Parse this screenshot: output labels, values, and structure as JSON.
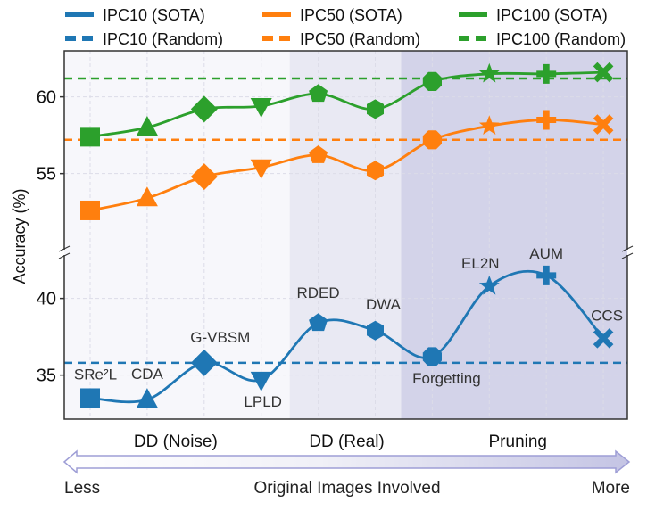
{
  "chart_data": {
    "type": "line",
    "ylabel": "Accuracy (%)",
    "categories": [
      "SRe²L",
      "CDA",
      "G-VBSM",
      "LPLD",
      "RDED",
      "DWA",
      "Forgetting",
      "EL2N",
      "AUM",
      "CCS"
    ],
    "markers": [
      "square",
      "triangle-up",
      "diamond",
      "triangle-down",
      "pentagon",
      "hexagon",
      "octagon",
      "star",
      "plus",
      "x"
    ],
    "groups": [
      {
        "label": "DD (Noise)",
        "from": 0,
        "to": 3,
        "color": "#f7f7fb"
      },
      {
        "label": "DD (Real)",
        "from": 4,
        "to": 5,
        "color": "#e9e9f3"
      },
      {
        "label": "Pruning",
        "from": 6,
        "to": 9,
        "color": "#d3d3e9"
      }
    ],
    "broken_y_axis": true,
    "ylim_upper": [
      50,
      63
    ],
    "ylim_lower": [
      32,
      43
    ],
    "yticks_upper": [
      55,
      60
    ],
    "yticks_lower": [
      35,
      40
    ],
    "grid": true,
    "legend_position": "top",
    "series": [
      {
        "name": "IPC10 (SOTA)",
        "color": "#1f77b4",
        "style": "solid",
        "values": [
          33.5,
          33.4,
          35.8,
          34.7,
          38.4,
          37.9,
          36.2,
          40.8,
          41.5,
          37.4
        ]
      },
      {
        "name": "IPC50 (SOTA)",
        "color": "#ff7f0e",
        "style": "solid",
        "values": [
          52.6,
          53.4,
          54.8,
          55.4,
          56.2,
          55.2,
          57.2,
          58.1,
          58.5,
          58.2
        ]
      },
      {
        "name": "IPC100 (SOTA)",
        "color": "#2ca02c",
        "style": "solid",
        "values": [
          57.4,
          58.0,
          59.2,
          59.4,
          60.2,
          59.2,
          61.0,
          61.5,
          61.5,
          61.6
        ]
      },
      {
        "name": "IPC10 (Random)",
        "color": "#1f77b4",
        "style": "dashed",
        "value": 35.8
      },
      {
        "name": "IPC50 (Random)",
        "color": "#ff7f0e",
        "style": "dashed",
        "value": 57.2
      },
      {
        "name": "IPC100 (Random)",
        "color": "#2ca02c",
        "style": "dashed",
        "value": 61.2
      }
    ],
    "arrow": {
      "left": "Less",
      "center": "Original Images Involved",
      "right": "More"
    }
  }
}
